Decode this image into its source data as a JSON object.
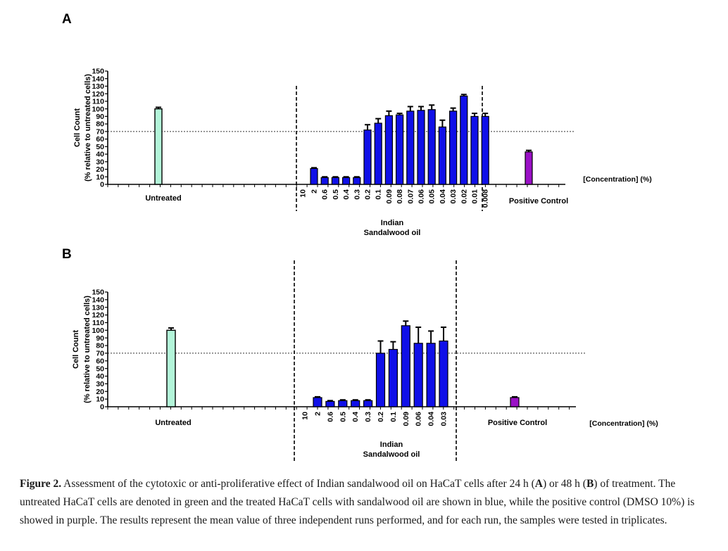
{
  "chart_data": [
    {
      "panel": "A",
      "type": "bar",
      "ylabel_line1": "Cell Count",
      "ylabel_line2": "(% relative to untreated cells)",
      "ylim": [
        0,
        150
      ],
      "yticks": [
        0,
        10,
        20,
        30,
        40,
        50,
        60,
        70,
        80,
        90,
        100,
        110,
        120,
        130,
        140,
        150
      ],
      "reference_line": 70,
      "concentration_label": "[Concentration] (%)",
      "group_label_line1": "Indian",
      "group_label_line2": "Sandalwood oil",
      "untreated": {
        "label": "Untreated",
        "value": 100,
        "error": 2,
        "color": "#b3f5d9"
      },
      "positive_control": {
        "label": "Positive Control",
        "value": 43,
        "error": 2,
        "color": "#9a10c6"
      },
      "treatment_color": "#1010e8",
      "concentrations": [
        "10",
        "2",
        "0.6",
        "0.5",
        "0.4",
        "0.3",
        "0.2",
        "0.1",
        "0.09",
        "0.08",
        "0.07",
        "0.06",
        "0.05",
        "0.04",
        "0.03",
        "0.02",
        "0.01",
        "0.008"
      ],
      "values": [
        0,
        21,
        9,
        9,
        9,
        9,
        72,
        81,
        91,
        92,
        97,
        98,
        99,
        76,
        97,
        117,
        90,
        90
      ],
      "errors": [
        0,
        1,
        1,
        1,
        1,
        1,
        7,
        6,
        6,
        2,
        6,
        5,
        6,
        9,
        4,
        2,
        4,
        4
      ]
    },
    {
      "panel": "B",
      "type": "bar",
      "ylabel_line1": "Cell Count",
      "ylabel_line2": "(% relative to untreated cells)",
      "ylim": [
        0,
        150
      ],
      "yticks": [
        0,
        10,
        20,
        30,
        40,
        50,
        60,
        70,
        80,
        90,
        100,
        110,
        120,
        130,
        140,
        150
      ],
      "reference_line": 70,
      "concentration_label": "[Concentration] (%)",
      "group_label_line1": "Indian",
      "group_label_line2": "Sandalwood oil",
      "untreated": {
        "label": "Untreated",
        "value": 100,
        "error": 3,
        "color": "#b3f5d9"
      },
      "positive_control": {
        "label": "Positive Control",
        "value": 12,
        "error": 1,
        "color": "#9a10c6"
      },
      "treatment_color": "#1010e8",
      "concentrations": [
        "10",
        "2",
        "0.6",
        "0.5",
        "0.4",
        "0.3",
        "0.2",
        "0.1",
        "0.09",
        "0.06",
        "0.04",
        "0.03"
      ],
      "values": [
        0,
        12,
        7,
        8,
        8,
        8,
        70,
        75,
        106,
        83,
        83,
        86
      ],
      "errors": [
        0,
        1,
        1,
        1,
        1,
        1,
        16,
        10,
        6,
        21,
        16,
        18
      ]
    }
  ],
  "caption": {
    "label": "Figure 2.",
    "t1": " Assessment of the cytotoxic or anti-proliferative effect of Indian sandalwood oil on HaCaT cells after 24 h (",
    "a": "A",
    "t2": ") or 48 h (",
    "b": "B",
    "t3": ") of treatment. The untreated HaCaT cells are denoted in green and the treated HaCaT cells with sandalwood oil are shown in blue, while the positive control (DMSO 10%) is showed in purple. The results represent the mean value of three independent runs performed, and for each run, the samples were tested in triplicates."
  }
}
